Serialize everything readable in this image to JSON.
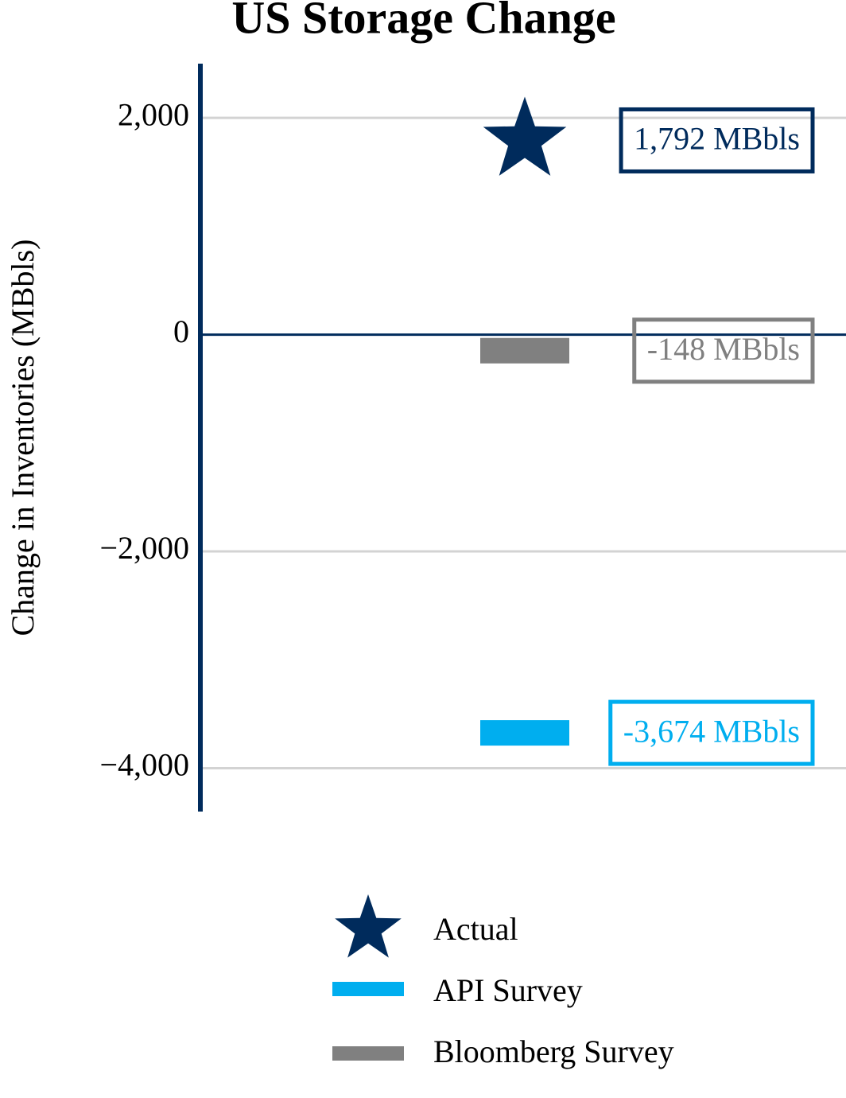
{
  "chart_data": {
    "type": "marker",
    "title": "US Storage Change",
    "y_label": "Change in Inventories (MBbls)",
    "ylim": [
      -4400,
      2500
    ],
    "yticks": [
      {
        "value": 2000,
        "label": "2,000"
      },
      0,
      {
        "value": -2000,
        "label": "−2,000"
      },
      {
        "value": -4000,
        "label": "−4,000"
      }
    ],
    "grid": true,
    "series": [
      {
        "name": "Actual",
        "color": "#002b5c",
        "marker": "star",
        "values": [
          1792
        ],
        "value_labels": [
          "1,792 MBbls"
        ]
      },
      {
        "name": "API Survey",
        "color": "#00aeef",
        "marker": "bar",
        "values": [
          -3674
        ],
        "value_labels": [
          "-3,674 MBbls"
        ]
      },
      {
        "name": "Bloomberg Survey",
        "color": "#808080",
        "marker": "bar",
        "values": [
          -148
        ],
        "value_labels": [
          "-148 MBbls"
        ]
      }
    ]
  }
}
